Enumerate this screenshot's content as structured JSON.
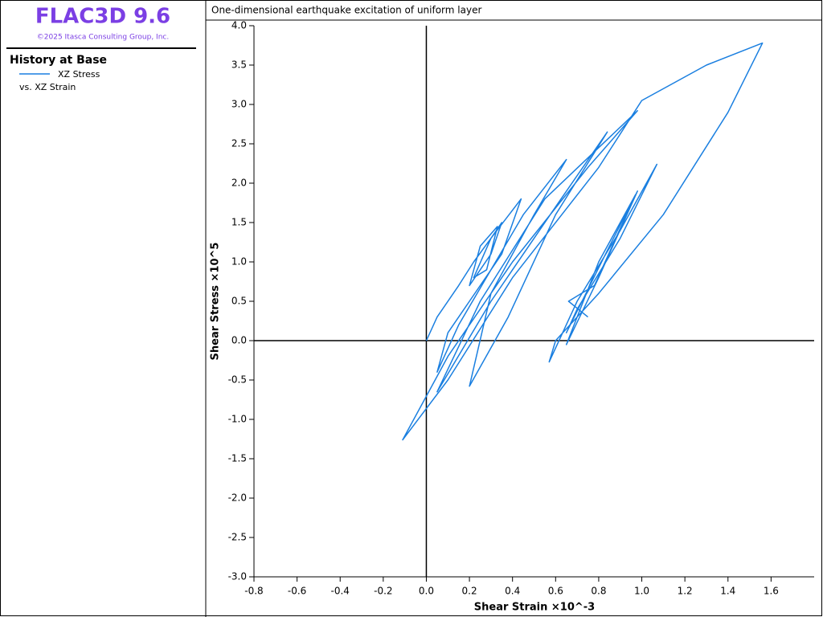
{
  "app": {
    "title": "FLAC3D 9.6",
    "copyright": "©2025 Itasca Consulting Group, Inc."
  },
  "legend_panel": {
    "title": "History at Base",
    "note": "vs. XZ Strain"
  },
  "chart_data": {
    "type": "line",
    "title": "One-dimensional earthquake excitation of uniform layer",
    "x_label": "Shear Strain ×10^-3",
    "y_label": "Shear Stress ×10^5",
    "xlim": [
      -0.8,
      1.8
    ],
    "ylim": [
      -3,
      4
    ],
    "xticks": [
      -0.8,
      -0.6,
      -0.4,
      -0.2,
      {
        "value": 0,
        "label": "0.0"
      },
      0.2,
      0.4,
      0.6,
      0.8,
      {
        "value": 1,
        "label": "1.0"
      },
      1.2,
      1.4,
      1.6
    ],
    "yticks": [
      {
        "value": -3,
        "label": "-3.0"
      },
      -2.5,
      {
        "value": -2,
        "label": "-2.0"
      },
      -1.5,
      {
        "value": -1,
        "label": "-1.0"
      },
      -0.5,
      {
        "value": 0,
        "label": "0.0"
      },
      0.5,
      {
        "value": 1,
        "label": "1.0"
      },
      1.5,
      {
        "value": 2,
        "label": "2.0"
      },
      2.5,
      {
        "value": 3,
        "label": "3.0"
      },
      3.5,
      {
        "value": 4,
        "label": "4.0"
      }
    ],
    "zero_lines": true,
    "series": [
      {
        "name": "XZ Stress",
        "color": "#1a7fe0",
        "x": [
          0,
          0.05,
          0.15,
          0.22,
          0.3,
          0.35,
          0.3,
          0.2,
          0.25,
          0.33,
          0.28,
          0.22,
          0.3,
          0.44,
          0.35,
          0.2,
          0.1,
          0.05,
          0.15,
          0.3,
          0.45,
          0.65,
          0.5,
          0.3,
          0.2,
          0.38,
          0.6,
          0.84,
          0.6,
          0.3,
          0.05,
          0.25,
          0.55,
          0.98,
          0.75,
          0.4,
          0.1,
          -0.11,
          0.1,
          0.4,
          0.8,
          1.0,
          1.3,
          1.56,
          1.4,
          1.1,
          0.8,
          0.6,
          0.57,
          0.7,
          0.9,
          1.07,
          0.9,
          0.7,
          0.65,
          0.85,
          0.98,
          0.8,
          0.65,
          0.8,
          0.97,
          0.78,
          0.66,
          0.75
        ],
        "values": [
          0,
          0.3,
          0.7,
          1.0,
          1.3,
          1.5,
          1.1,
          0.7,
          1.2,
          1.45,
          0.9,
          0.8,
          1.3,
          1.8,
          1.1,
          0.5,
          0.1,
          -0.4,
          0.2,
          0.9,
          1.6,
          2.3,
          1.6,
          0.6,
          -0.58,
          0.3,
          1.6,
          2.65,
          1.7,
          0.5,
          -0.65,
          0.5,
          1.8,
          2.92,
          2.2,
          1.0,
          -0.2,
          -1.26,
          -0.5,
          0.8,
          2.2,
          3.05,
          3.5,
          3.78,
          2.9,
          1.6,
          0.6,
          0.0,
          -0.27,
          0.5,
          1.4,
          2.24,
          1.3,
          0.4,
          0.1,
          1.2,
          1.9,
          0.8,
          -0.05,
          1.0,
          1.85,
          0.7,
          0.5,
          0.3
        ]
      }
    ]
  }
}
